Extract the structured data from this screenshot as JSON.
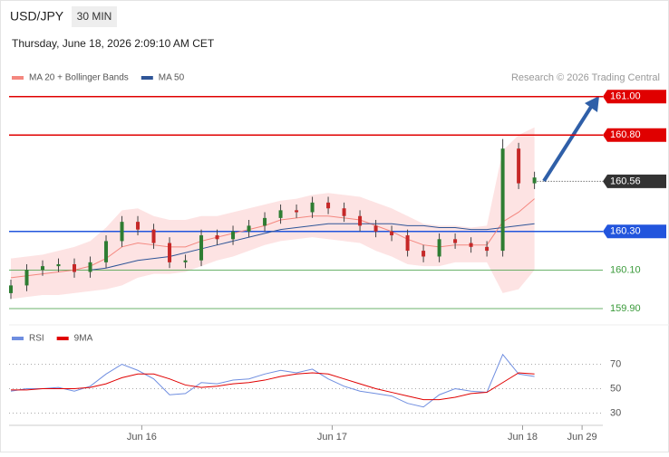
{
  "header": {
    "symbol": "USD/JPY",
    "interval": "30 MIN",
    "timestamp": "Thursday, June 18, 2026 2:09:10 AM CET"
  },
  "chart_data": [
    {
      "type": "candlestick",
      "source": "Research © 2026 Trading Central",
      "x": [
        0,
        4,
        8,
        12,
        16,
        20,
        24,
        28,
        32,
        36,
        40,
        44,
        48,
        52,
        56,
        60,
        64,
        68,
        72,
        76,
        80,
        84,
        88,
        92,
        96,
        100,
        104,
        108,
        112,
        116,
        120,
        124,
        128,
        132
      ],
      "open": [
        159.98,
        160.02,
        160.1,
        160.12,
        160.13,
        160.09,
        160.14,
        160.25,
        160.35,
        160.31,
        160.24,
        160.14,
        160.15,
        160.28,
        160.26,
        160.3,
        160.33,
        160.37,
        160.41,
        160.4,
        160.45,
        160.42,
        160.38,
        160.33,
        160.3,
        160.28,
        160.2,
        160.17,
        160.26,
        160.24,
        160.22,
        160.2,
        160.73,
        160.55
      ],
      "high": [
        160.05,
        160.13,
        160.15,
        160.16,
        160.16,
        160.17,
        160.28,
        160.38,
        160.38,
        160.34,
        160.27,
        160.18,
        160.31,
        160.31,
        160.33,
        160.36,
        160.4,
        160.44,
        160.44,
        160.48,
        160.48,
        160.45,
        160.41,
        160.36,
        160.33,
        160.31,
        160.23,
        160.29,
        160.29,
        160.27,
        160.25,
        160.78,
        160.76,
        160.61
      ],
      "low": [
        159.95,
        159.99,
        160.07,
        160.09,
        160.06,
        160.06,
        160.11,
        160.22,
        160.28,
        160.21,
        160.11,
        160.11,
        160.12,
        160.23,
        160.23,
        160.27,
        160.3,
        160.34,
        160.37,
        160.37,
        160.39,
        160.35,
        160.3,
        160.27,
        160.25,
        160.17,
        160.14,
        160.14,
        160.21,
        160.19,
        160.17,
        160.17,
        160.52,
        160.52
      ],
      "close": [
        160.02,
        160.1,
        160.12,
        160.13,
        160.09,
        160.14,
        160.25,
        160.35,
        160.31,
        160.24,
        160.14,
        160.15,
        160.28,
        160.26,
        160.3,
        160.33,
        160.37,
        160.41,
        160.4,
        160.45,
        160.42,
        160.38,
        160.33,
        160.3,
        160.28,
        160.2,
        160.17,
        160.26,
        160.24,
        160.22,
        160.2,
        160.73,
        160.55,
        160.58
      ],
      "up_color": "#2e7d32",
      "down_color": "#c62828",
      "series": [
        {
          "name": "MA 20 + Bollinger Bands",
          "color": "#f4877f",
          "band_color": "#fde3e3",
          "values": [
            160.06,
            160.07,
            160.08,
            160.09,
            160.1,
            160.12,
            160.16,
            160.22,
            160.24,
            160.23,
            160.22,
            160.22,
            160.25,
            160.27,
            160.29,
            160.31,
            160.33,
            160.36,
            160.37,
            160.38,
            160.38,
            160.37,
            160.36,
            160.33,
            160.3,
            160.26,
            160.23,
            160.22,
            160.23,
            160.23,
            160.23,
            160.35,
            160.4,
            160.47
          ],
          "upper": [
            160.16,
            160.17,
            160.18,
            160.2,
            160.22,
            160.25,
            160.32,
            160.41,
            160.42,
            160.38,
            160.36,
            160.36,
            160.38,
            160.38,
            160.4,
            160.42,
            160.44,
            160.46,
            160.47,
            160.49,
            160.5,
            160.49,
            160.48,
            160.45,
            160.42,
            160.38,
            160.34,
            160.33,
            160.33,
            160.32,
            160.33,
            160.72,
            160.8,
            160.84
          ],
          "lower": [
            159.95,
            159.96,
            159.97,
            159.97,
            159.98,
            159.99,
            160.0,
            160.02,
            160.06,
            160.08,
            160.08,
            160.09,
            160.12,
            160.15,
            160.17,
            160.2,
            160.23,
            160.25,
            160.26,
            160.27,
            160.26,
            160.25,
            160.24,
            160.2,
            160.17,
            160.13,
            160.12,
            160.12,
            160.14,
            160.14,
            160.14,
            159.98,
            160.0,
            160.1
          ]
        },
        {
          "name": "MA 50",
          "color": "#2f5597",
          "values": [
            null,
            null,
            null,
            null,
            null,
            160.1,
            160.11,
            160.13,
            160.15,
            160.16,
            160.17,
            160.19,
            160.21,
            160.23,
            160.25,
            160.27,
            160.29,
            160.31,
            160.32,
            160.33,
            160.34,
            160.34,
            160.34,
            160.34,
            160.34,
            160.33,
            160.33,
            160.32,
            160.32,
            160.31,
            160.31,
            160.32,
            160.33,
            160.34
          ]
        }
      ],
      "xlim": [
        0,
        149
      ],
      "ylim": [
        159.82,
        161.21
      ],
      "levels": [
        {
          "value": 161,
          "label": "161.00",
          "color": "#e00000",
          "boxed": true,
          "line": true
        },
        {
          "value": 160.8,
          "label": "160.80",
          "color": "#e00000",
          "boxed": true,
          "line": true
        },
        {
          "value": 160.56,
          "label": "160.56",
          "color": "#333333",
          "boxed": true,
          "line": false
        },
        {
          "value": 160.3,
          "label": "160.30",
          "color": "#2255dd",
          "boxed": true,
          "line": true
        },
        {
          "value": 160.1,
          "label": "160.10",
          "color": "#3a9a3a",
          "boxed": false,
          "line": true
        },
        {
          "value": 159.9,
          "label": "159.90",
          "color": "#3a9a3a",
          "boxed": false,
          "line": true
        }
      ]
    },
    {
      "type": "line",
      "x": [
        0,
        4,
        8,
        12,
        16,
        20,
        24,
        28,
        32,
        36,
        40,
        44,
        48,
        52,
        56,
        60,
        64,
        68,
        72,
        76,
        80,
        84,
        88,
        92,
        96,
        100,
        104,
        108,
        112,
        116,
        120,
        124,
        128,
        132
      ],
      "series": [
        {
          "name": "RSI",
          "color": "#6f8ee0",
          "values": [
            48,
            50,
            50,
            51,
            48,
            52,
            62,
            70,
            65,
            58,
            45,
            46,
            55,
            54,
            57,
            58,
            62,
            65,
            63,
            66,
            58,
            52,
            48,
            46,
            44,
            38,
            35,
            45,
            50,
            48,
            47,
            78,
            62,
            60
          ]
        },
        {
          "name": "9MA",
          "color": "#e00000",
          "values": [
            49,
            49,
            50,
            50,
            50,
            51,
            54,
            59,
            62,
            62,
            58,
            53,
            51,
            52,
            54,
            55,
            57,
            60,
            62,
            63,
            62,
            58,
            54,
            50,
            47,
            44,
            41,
            41,
            43,
            46,
            47,
            55,
            63,
            62
          ]
        }
      ],
      "xlim": [
        0,
        149
      ],
      "ylim": [
        20,
        100
      ],
      "yticks": [
        30,
        50,
        70
      ],
      "grid": true,
      "xticks": [
        {
          "value": 33,
          "label": "Jun 16"
        },
        {
          "value": 81,
          "label": "Jun 17"
        },
        {
          "value": 129,
          "label": "Jun 18"
        },
        {
          "value": 144,
          "label": "Jun 29"
        }
      ]
    }
  ]
}
